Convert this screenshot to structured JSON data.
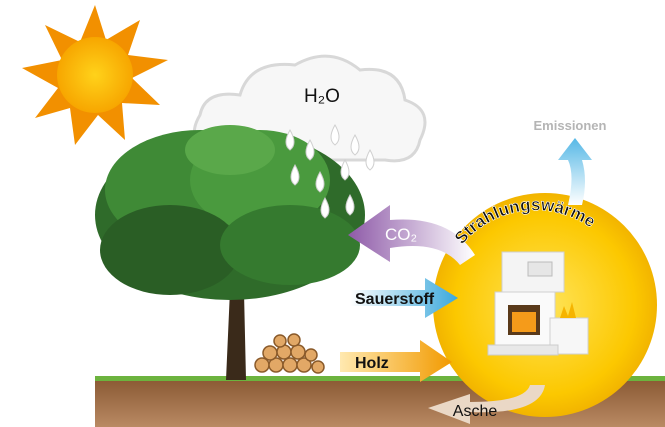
{
  "labels": {
    "water": "H₂O",
    "emissions": "Emissionen",
    "co2": "CO₂",
    "radiant_heat": "Strahlungswärme",
    "oxygen": "Sauerstoff",
    "wood": "Holz",
    "ash": "Asche"
  }
}
